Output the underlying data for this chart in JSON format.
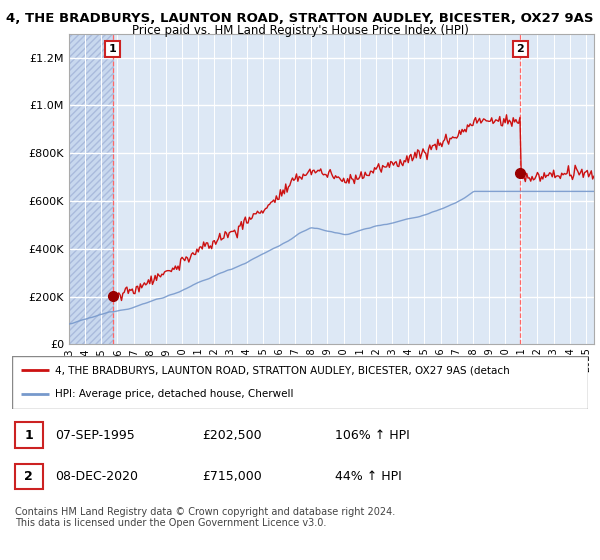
{
  "title_line1": "4, THE BRADBURYS, LAUNTON ROAD, STRATTON AUDLEY, BICESTER, OX27 9AS",
  "title_line2": "Price paid vs. HM Land Registry's House Price Index (HPI)",
  "background_color": "#ffffff",
  "plot_bg_color": "#dde8f5",
  "hatch_bg_color": "#c8d8ee",
  "grid_color": "#ffffff",
  "sale1_year": 1995.7,
  "sale1_price": 202500,
  "sale2_year": 2020.95,
  "sale2_price": 715000,
  "sale_marker_color": "#990000",
  "hpi_line_color": "#7799cc",
  "price_line_color": "#cc1111",
  "vline_color": "#ff6666",
  "legend_label_price": "4, THE BRADBURYS, LAUNTON ROAD, STRATTON AUDLEY, BICESTER, OX27 9AS (detach",
  "legend_label_hpi": "HPI: Average price, detached house, Cherwell",
  "note1_date": "07-SEP-1995",
  "note1_price": "£202,500",
  "note1_hpi": "106% ↑ HPI",
  "note2_date": "08-DEC-2020",
  "note2_price": "£715,000",
  "note2_hpi": "44% ↑ HPI",
  "copyright": "Contains HM Land Registry data © Crown copyright and database right 2024.\nThis data is licensed under the Open Government Licence v3.0.",
  "ylim_max": 1300000,
  "ylim_min": 0,
  "start_year": 1993,
  "end_year": 2025
}
